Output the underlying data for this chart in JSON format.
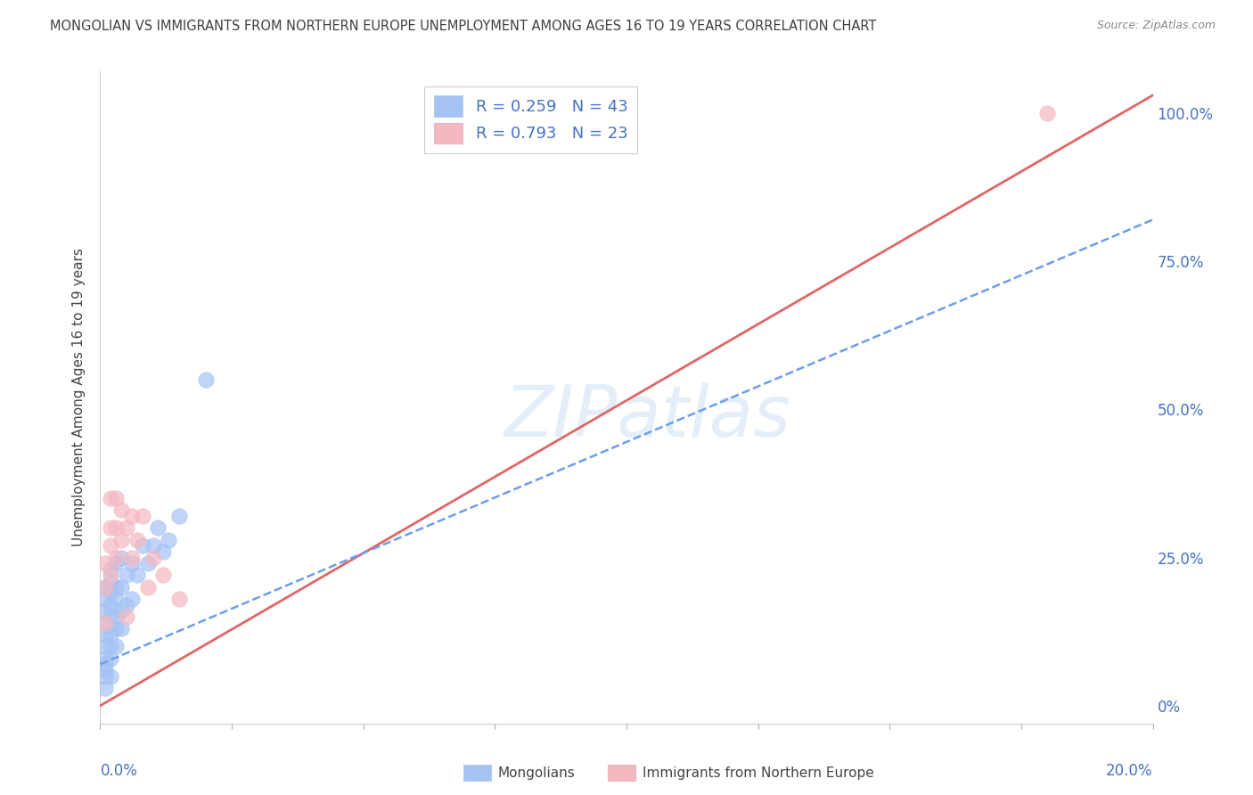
{
  "title": "MONGOLIAN VS IMMIGRANTS FROM NORTHERN EUROPE UNEMPLOYMENT AMONG AGES 16 TO 19 YEARS CORRELATION CHART",
  "source": "Source: ZipAtlas.com",
  "ylabel": "Unemployment Among Ages 16 to 19 years",
  "watermark": "ZIPatlas",
  "blue_color": "#a4c2f4",
  "pink_color": "#f4b8c1",
  "blue_line_color": "#6d9eeb",
  "pink_line_color": "#e06666",
  "title_color": "#404040",
  "label_color": "#4472c4",
  "mongolians_x": [
    0.001,
    0.001,
    0.001,
    0.001,
    0.001,
    0.001,
    0.001,
    0.001,
    0.001,
    0.001,
    0.001,
    0.002,
    0.002,
    0.002,
    0.002,
    0.002,
    0.002,
    0.002,
    0.002,
    0.002,
    0.003,
    0.003,
    0.003,
    0.003,
    0.003,
    0.003,
    0.004,
    0.004,
    0.004,
    0.004,
    0.005,
    0.005,
    0.006,
    0.006,
    0.007,
    0.008,
    0.009,
    0.01,
    0.011,
    0.012,
    0.013,
    0.015,
    0.02
  ],
  "mongolians_y": [
    0.05,
    0.07,
    0.08,
    0.1,
    0.12,
    0.14,
    0.16,
    0.18,
    0.2,
    0.03,
    0.06,
    0.08,
    0.1,
    0.12,
    0.15,
    0.17,
    0.19,
    0.21,
    0.23,
    0.05,
    0.1,
    0.13,
    0.15,
    0.18,
    0.2,
    0.24,
    0.13,
    0.16,
    0.2,
    0.25,
    0.17,
    0.22,
    0.18,
    0.24,
    0.22,
    0.27,
    0.24,
    0.27,
    0.3,
    0.26,
    0.28,
    0.32,
    0.55
  ],
  "immigrants_x": [
    0.001,
    0.001,
    0.001,
    0.002,
    0.002,
    0.002,
    0.002,
    0.003,
    0.003,
    0.003,
    0.004,
    0.004,
    0.005,
    0.005,
    0.006,
    0.006,
    0.007,
    0.008,
    0.009,
    0.01,
    0.012,
    0.015,
    0.18
  ],
  "immigrants_y": [
    0.14,
    0.2,
    0.24,
    0.22,
    0.27,
    0.3,
    0.35,
    0.25,
    0.3,
    0.35,
    0.28,
    0.33,
    0.3,
    0.15,
    0.25,
    0.32,
    0.28,
    0.32,
    0.2,
    0.25,
    0.22,
    0.18,
    1.0
  ],
  "blue_trend_x": [
    0.0,
    0.2
  ],
  "blue_trend_y": [
    0.07,
    0.82
  ],
  "pink_trend_x": [
    0.0,
    0.2
  ],
  "pink_trend_y": [
    0.0,
    1.03
  ],
  "xmin": 0.0,
  "xmax": 0.2,
  "ymin": -0.03,
  "ymax": 1.07,
  "yticks": [
    0.0,
    0.25,
    0.5,
    0.75,
    1.0
  ],
  "ytick_labels": [
    "0%",
    "25.0%",
    "50.0%",
    "75.0%",
    "100.0%"
  ],
  "xtick_labels_show": [
    "0.0%",
    "20.0%"
  ],
  "grid_color": "#dddddd",
  "r1_label": "R = 0.259   N = 43",
  "r2_label": "R = 0.793   N = 23"
}
